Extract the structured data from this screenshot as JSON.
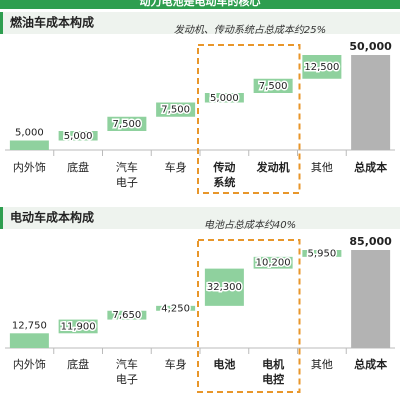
{
  "header": "动力电池是电动车的核心",
  "chart_data": [
    {
      "type": "waterfall",
      "title": "燃油车成本构成",
      "annotation": "发动机、传动系统占总成本约25%",
      "categories": [
        "内外饰",
        "底盘",
        "汽车电子",
        "车身",
        "传动系统",
        "发动机",
        "其他",
        "总成本"
      ],
      "values": [
        5000,
        5000,
        7500,
        7500,
        5000,
        7500,
        12500,
        50000
      ],
      "value_labels": [
        "5,000",
        "5,000",
        "7,500",
        "7,500",
        "5,000",
        "7,500",
        "12,500",
        "50,000"
      ],
      "color": "#8fd19e",
      "total_color": "#b3b3b3",
      "ylim": [
        0,
        50000
      ]
    },
    {
      "type": "waterfall",
      "title": "电动车成本构成",
      "annotation": "电池占总成本约40%",
      "categories": [
        "内外饰",
        "底盘",
        "汽车电子",
        "车身",
        "电池",
        "电机电控",
        "其他",
        "总成本"
      ],
      "values": [
        12750,
        11900,
        7650,
        4250,
        32300,
        10200,
        5950,
        85000
      ],
      "value_labels": [
        "12,750",
        "11,900",
        "7,650",
        "4,250",
        "32,300",
        "10,200",
        "5,950",
        "85,000"
      ],
      "color": "#8fd19e",
      "total_color": "#b3b3b3",
      "ylim": [
        0,
        85000
      ]
    }
  ]
}
